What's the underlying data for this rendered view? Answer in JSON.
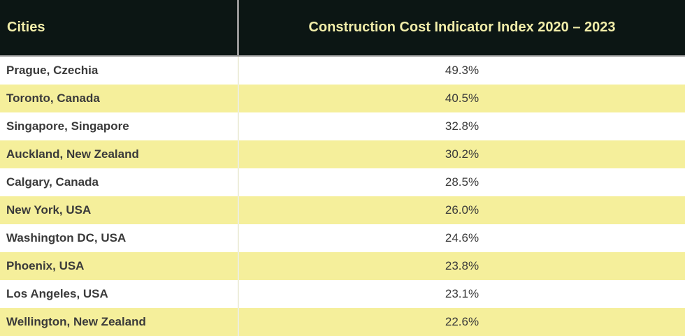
{
  "table": {
    "columns": {
      "cities_label": "Cities",
      "index_label": "Construction Cost Indicator Index 2020 – 2023"
    },
    "rows": [
      {
        "city": "Prague, Czechia",
        "value": "49.3%"
      },
      {
        "city": "Toronto, Canada",
        "value": "40.5%"
      },
      {
        "city": "Singapore, Singapore",
        "value": "32.8%"
      },
      {
        "city": "Auckland, New Zealand",
        "value": "30.2%"
      },
      {
        "city": "Calgary, Canada",
        "value": "28.5%"
      },
      {
        "city": "New York, USA",
        "value": "26.0%"
      },
      {
        "city": "Washington DC, USA",
        "value": "24.6%"
      },
      {
        "city": "Phoenix, USA",
        "value": "23.8%"
      },
      {
        "city": "Los Angeles, USA",
        "value": "23.1%"
      },
      {
        "city": "Wellington, New Zealand",
        "value": "22.6%"
      }
    ]
  },
  "colors": {
    "header_background": "#0c1614",
    "header_text": "#f1eda9",
    "header_divider": "#969696",
    "row_alt_background": "#f5ef9b",
    "row_background": "#ffffff",
    "row_text": "#3a3a3a",
    "body_divider": "#eeeedc"
  },
  "chart_data": {
    "type": "table",
    "title": "Construction Cost Indicator Index 2020 – 2023",
    "columns": [
      "Cities",
      "Construction Cost Indicator Index 2020 – 2023"
    ],
    "categories": [
      "Prague, Czechia",
      "Toronto, Canada",
      "Singapore, Singapore",
      "Auckland, New Zealand",
      "Calgary, Canada",
      "New York, USA",
      "Washington DC, USA",
      "Phoenix, USA",
      "Los Angeles, USA",
      "Wellington, New Zealand"
    ],
    "values": [
      49.3,
      40.5,
      32.8,
      30.2,
      28.5,
      26.0,
      24.6,
      23.8,
      23.1,
      22.6
    ],
    "value_unit": "%",
    "layout": "two-column table, dark header with pale yellow text, zebra rows white/light-yellow, values centered"
  }
}
